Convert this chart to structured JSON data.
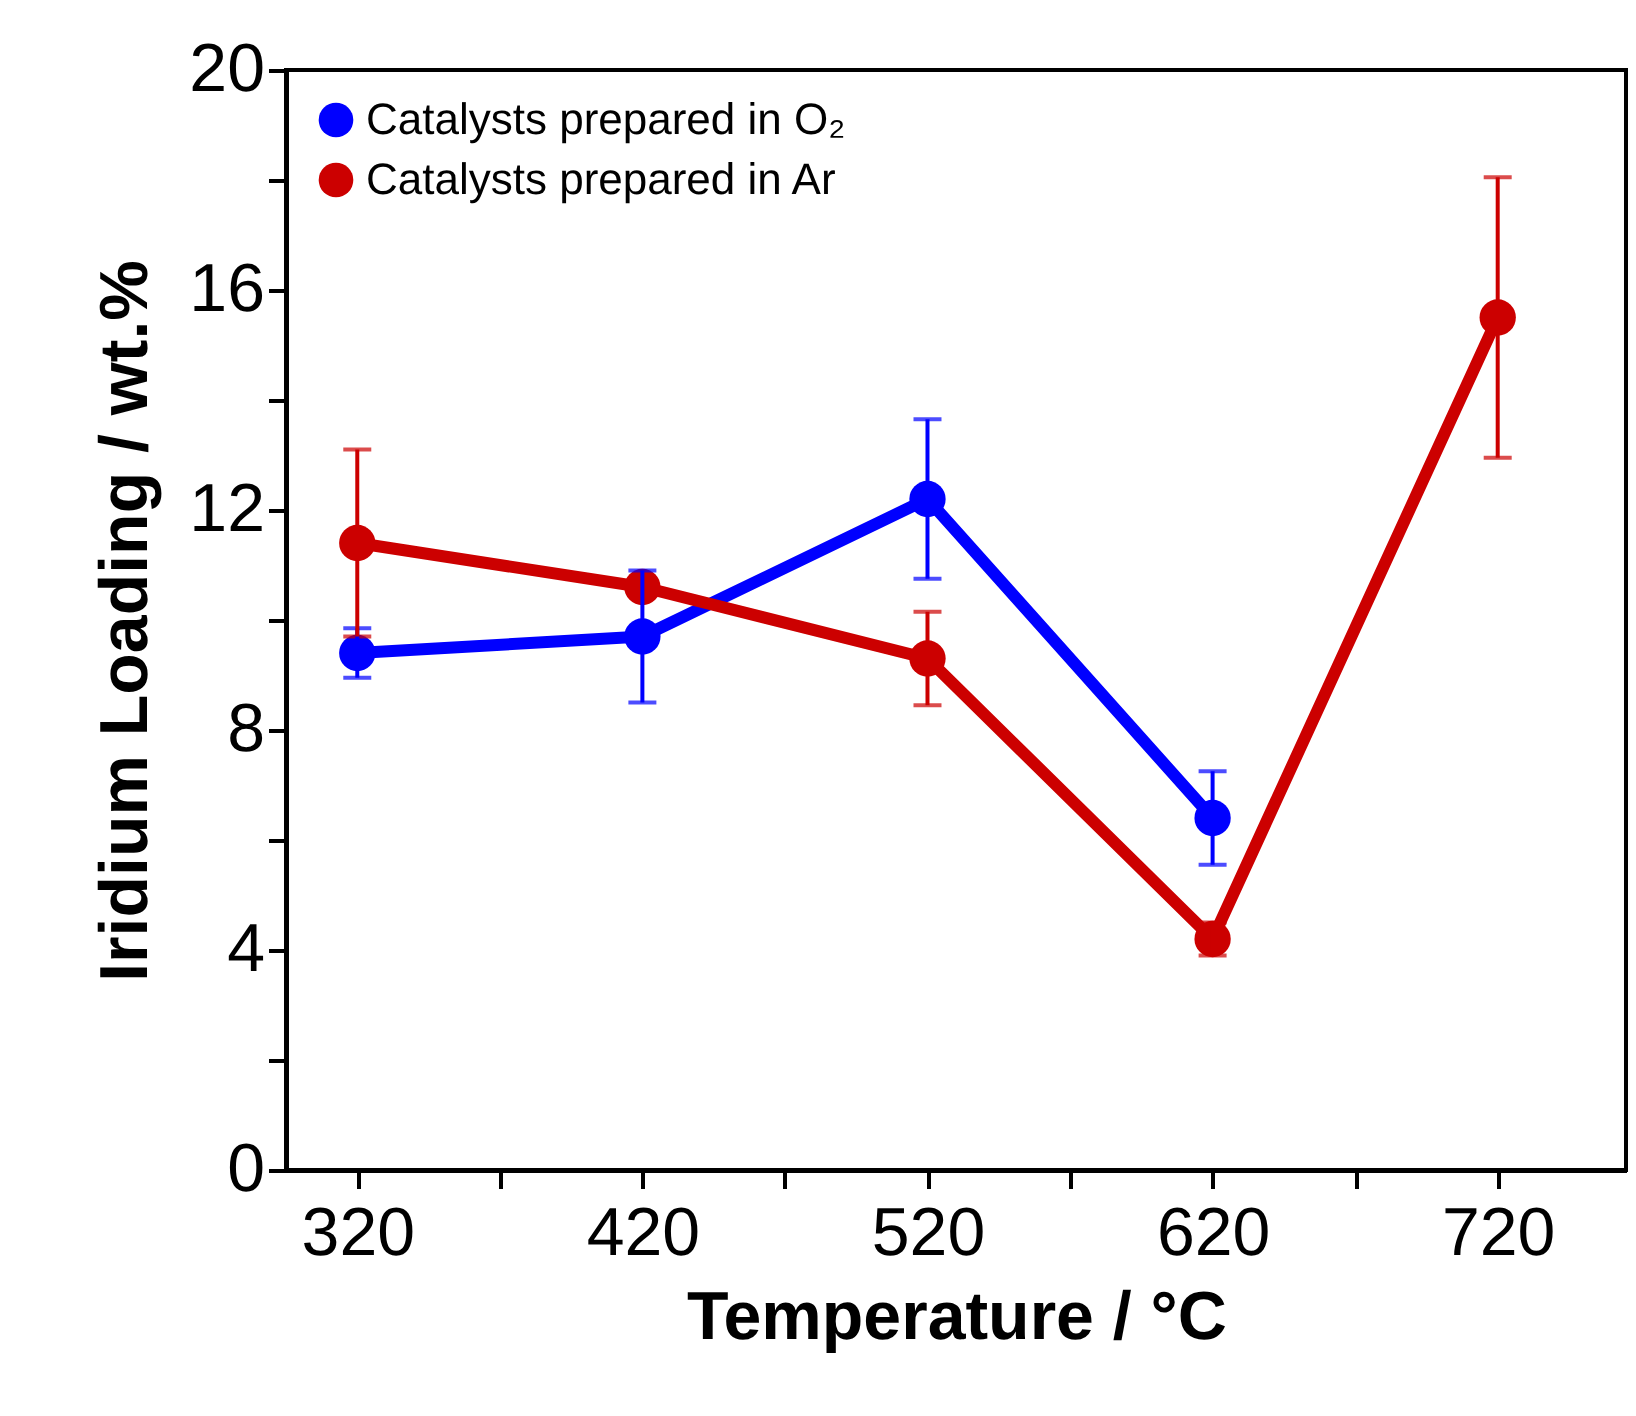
{
  "chart_data": {
    "type": "line",
    "xlabel": "Temperature / °C",
    "ylabel": "Iridium Loading / wt.%",
    "x": [
      320,
      420,
      520,
      620,
      720
    ],
    "series": [
      {
        "name": "Catalysts prepared in O₂",
        "color": "#0000ff",
        "values": [
          9.4,
          9.7,
          12.2,
          6.4,
          null
        ],
        "errors": [
          0.45,
          1.2,
          1.45,
          0.85,
          null
        ]
      },
      {
        "name": "Catalysts prepared in Ar",
        "color": "#cc0000",
        "values": [
          11.4,
          10.6,
          9.3,
          4.2,
          15.5
        ],
        "errors": [
          1.7,
          null,
          0.85,
          0.3,
          2.55
        ]
      }
    ],
    "xlim": [
      295,
      765
    ],
    "xticks": [
      320,
      {
        "value": 370,
        "label": null
      },
      420,
      {
        "value": 470,
        "label": null
      },
      520,
      {
        "value": 570,
        "label": null
      },
      620,
      {
        "value": 670,
        "label": null
      },
      720
    ],
    "ylim": [
      0,
      20
    ],
    "yticks": [
      0,
      {
        "value": 2,
        "label": null
      },
      4,
      {
        "value": 6,
        "label": null
      },
      8,
      {
        "value": 10,
        "label": null
      },
      12,
      {
        "value": 14,
        "label": null
      },
      16,
      {
        "value": 18,
        "label": null
      },
      20
    ],
    "legend": "top left",
    "marker": "circle",
    "line_style": "solid"
  }
}
